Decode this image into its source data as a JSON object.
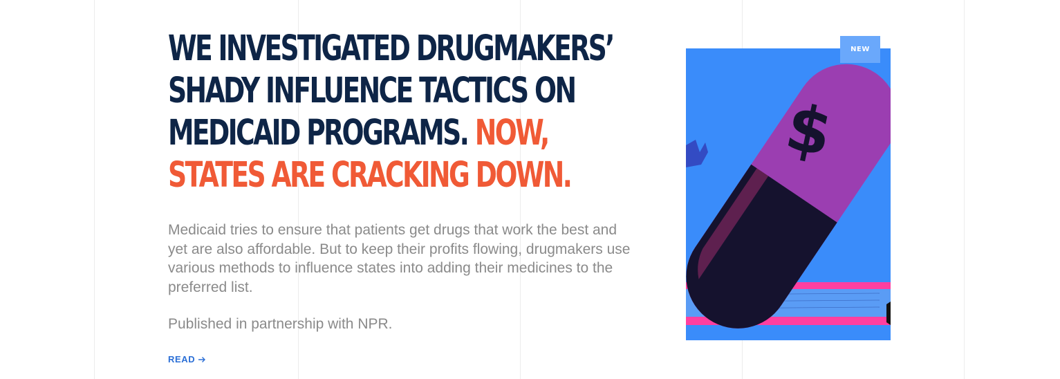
{
  "story": {
    "headline_main": "We investigated drugmakers’ shady influence tactics on Medicaid programs.",
    "headline_accent": "Now, states are cracking down.",
    "dek": "Medicaid tries to ensure that patients get drugs that work the best and yet are also affordable. But to keep their profits flowing, drugmakers use various methods to influence states into adding their medicines to the preferred list.",
    "credit": "Published in partnership with NPR.",
    "read_label": "READ",
    "read_icon": "arrow-right-icon"
  },
  "artwork": {
    "badge_label": "NEW",
    "pill_symbol": "$",
    "colors": {
      "background": "#3a8cfa",
      "pill_top": "#e83c8c",
      "pill_bottom": "#15122e",
      "stripe_pink": "#ff3fa0",
      "badge": "#6aa8fb"
    }
  },
  "colors": {
    "headline": "#0e2547",
    "accent": "#f05a36",
    "body_text": "#8a8a8a",
    "link": "#2b6fd6"
  }
}
